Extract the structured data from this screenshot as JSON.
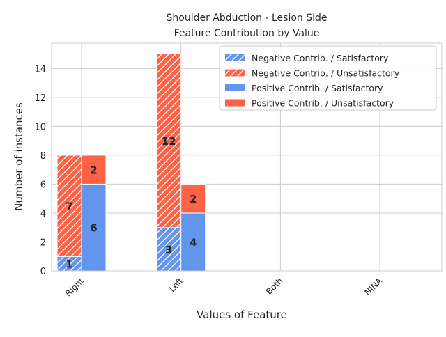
{
  "chart_data": {
    "type": "bar",
    "title": [
      "Shoulder Abduction - Lesion Side",
      "Feature Contribution by Value"
    ],
    "xlabel": "Values of Feature",
    "ylabel": "Number of instances",
    "categories": [
      "Right",
      "Left",
      "Both",
      "NINA"
    ],
    "ylim": [
      0,
      15.75
    ],
    "yticks": [
      0,
      2,
      4,
      6,
      8,
      10,
      12,
      14
    ],
    "grid": true,
    "legend_position": "top-right",
    "colors": {
      "satisfactory": "#6495ED",
      "unsatisfactory": "#FF6347"
    },
    "series": [
      {
        "name": "Negative Contrib. / Satisfactory",
        "group": "negative",
        "outcome": "satisfactory",
        "hatched": true,
        "values": [
          1,
          3,
          0,
          0
        ]
      },
      {
        "name": "Negative Contrib. / Unsatisfactory",
        "group": "negative",
        "outcome": "unsatisfactory",
        "hatched": true,
        "values": [
          7,
          12,
          0,
          0
        ]
      },
      {
        "name": "Positive Contrib. / Satisfactory",
        "group": "positive",
        "outcome": "satisfactory",
        "hatched": false,
        "values": [
          6,
          4,
          0,
          0
        ]
      },
      {
        "name": "Positive Contrib. / Unsatisfactory",
        "group": "positive",
        "outcome": "unsatisfactory",
        "hatched": false,
        "values": [
          2,
          2,
          0,
          0
        ]
      }
    ]
  }
}
